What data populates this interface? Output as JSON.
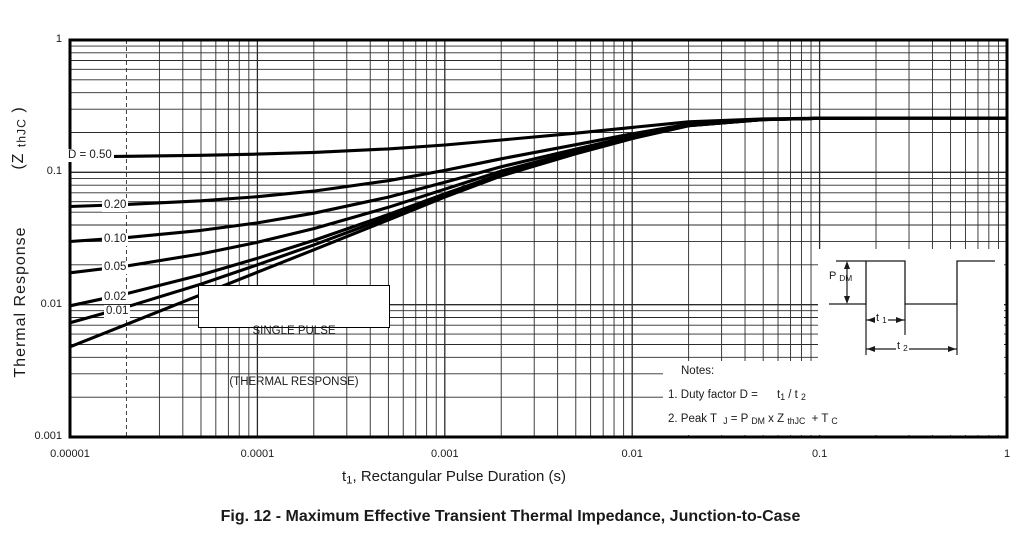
{
  "figure": {
    "caption": "Fig. 12 - Maximum Effective Transient Thermal Impedance, Junction-to-Case"
  },
  "axes": {
    "x": {
      "title_segments": [
        {
          "t": "t"
        },
        {
          "t": "1",
          "sub": true
        },
        {
          "t": ", Rectangular Pulse Duration (s)"
        }
      ],
      "ticks": [
        "0.00001",
        "0.0001",
        "0.001",
        "0.01",
        "0.1",
        "1"
      ]
    },
    "y": {
      "title_main": "Thermal Response",
      "title_symbol_segments": [
        {
          "t": "(Z "
        },
        {
          "t": "thJC",
          "sub": true
        },
        {
          "t": " )"
        }
      ],
      "ticks": [
        "1",
        "0.1",
        "0.01",
        "0.001"
      ]
    }
  },
  "single_pulse_box": {
    "line1": "SINGLE PULSE",
    "line2": "(THERMAL RESPONSE)"
  },
  "notes": {
    "heading": "Notes:",
    "line1_segments": [
      {
        "t": "1. Duty factor D =      "
      },
      {
        "t": "t"
      },
      {
        "t": "1",
        "sub": true
      },
      {
        "t": " / t "
      },
      {
        "t": "2",
        "sub": true
      }
    ],
    "line2_segments": [
      {
        "t": "2. Peak T  "
      },
      {
        "t": "J",
        "sub": true
      },
      {
        "t": " = P "
      },
      {
        "t": "DM",
        "sub": true
      },
      {
        "t": " x Z "
      },
      {
        "t": "thJC",
        "sub": true
      },
      {
        "t": "  + T "
      },
      {
        "t": "C",
        "sub": true
      }
    ]
  },
  "waveform": {
    "pdm_segments": [
      {
        "t": "P "
      },
      {
        "t": "DM",
        "sub": true
      }
    ],
    "t1_segments": [
      {
        "t": "t "
      },
      {
        "t": "1",
        "sub": true
      }
    ],
    "t2_segments": [
      {
        "t": "t "
      },
      {
        "t": "2",
        "sub": true
      }
    ]
  },
  "colors": {
    "line": "#000000",
    "grid": "#2a2a2a",
    "text": "#1a1a1a",
    "background": "#ffffff"
  },
  "chart_data": {
    "type": "line",
    "title": "Fig. 12 - Maximum Effective Transient Thermal Impedance, Junction-to-Case",
    "xlabel": "t1, Rectangular Pulse Duration (s)",
    "ylabel": "Thermal Response (ZthJC)",
    "x_scale": "log",
    "y_scale": "log",
    "xlim": [
      1e-05,
      1
    ],
    "ylim": [
      0.001,
      1
    ],
    "grid": true,
    "steady_state_value": 0.257,
    "t": [
      1e-05,
      2e-05,
      5e-05,
      0.0001,
      0.0002,
      0.0005,
      0.001,
      0.002,
      0.005,
      0.01,
      0.02,
      0.05,
      0.1,
      0.2,
      0.5,
      1
    ],
    "series": [
      {
        "name": "D = 0.50",
        "duty_cycle": 0.5,
        "values": [
          0.1309,
          0.1321,
          0.1345,
          0.1373,
          0.1415,
          0.1504,
          0.161,
          0.1755,
          0.1975,
          0.2185,
          0.241,
          0.2535,
          0.2565,
          0.257,
          0.257,
          0.257
        ]
      },
      {
        "name": "0.20",
        "duty_cycle": 0.2,
        "values": [
          0.0552,
          0.0571,
          0.0609,
          0.0655,
          0.0722,
          0.0864,
          0.1034,
          0.1266,
          0.1618,
          0.1954,
          0.2314,
          0.2514,
          0.2562,
          0.257,
          0.257,
          0.257
        ]
      },
      {
        "name": "0.10",
        "duty_cycle": 0.1,
        "values": [
          0.03,
          0.0321,
          0.0364,
          0.0415,
          0.0491,
          0.065,
          0.0842,
          0.1103,
          0.1499,
          0.1877,
          0.2282,
          0.2507,
          0.2561,
          0.257,
          0.257,
          0.257
        ]
      },
      {
        "name": "0.05",
        "duty_cycle": 0.05,
        "values": [
          0.0174,
          0.0196,
          0.0242,
          0.0296,
          0.0376,
          0.0544,
          0.0746,
          0.1022,
          0.144,
          0.1839,
          0.2266,
          0.2504,
          0.2561,
          0.257,
          0.257,
          0.257
        ]
      },
      {
        "name": "0.02",
        "duty_cycle": 0.02,
        "values": [
          0.0098,
          0.0121,
          0.0168,
          0.0224,
          0.0306,
          0.048,
          0.0688,
          0.0973,
          0.1404,
          0.1815,
          0.2256,
          0.2501,
          0.256,
          0.257,
          0.257,
          0.257
        ]
      },
      {
        "name": "0.01",
        "duty_cycle": 0.01,
        "values": [
          0.0073,
          0.0096,
          0.0143,
          0.02,
          0.0283,
          0.0458,
          0.0669,
          0.0956,
          0.1392,
          0.1808,
          0.2253,
          0.2501,
          0.256,
          0.257,
          0.257,
          0.257
        ]
      },
      {
        "name": "single pulse",
        "duty_cycle": 0,
        "values": [
          0.0048,
          0.0071,
          0.0119,
          0.0176,
          0.026,
          0.0437,
          0.065,
          0.094,
          0.138,
          0.18,
          0.225,
          0.25,
          0.256,
          0.257,
          0.257,
          0.257
        ]
      }
    ]
  }
}
